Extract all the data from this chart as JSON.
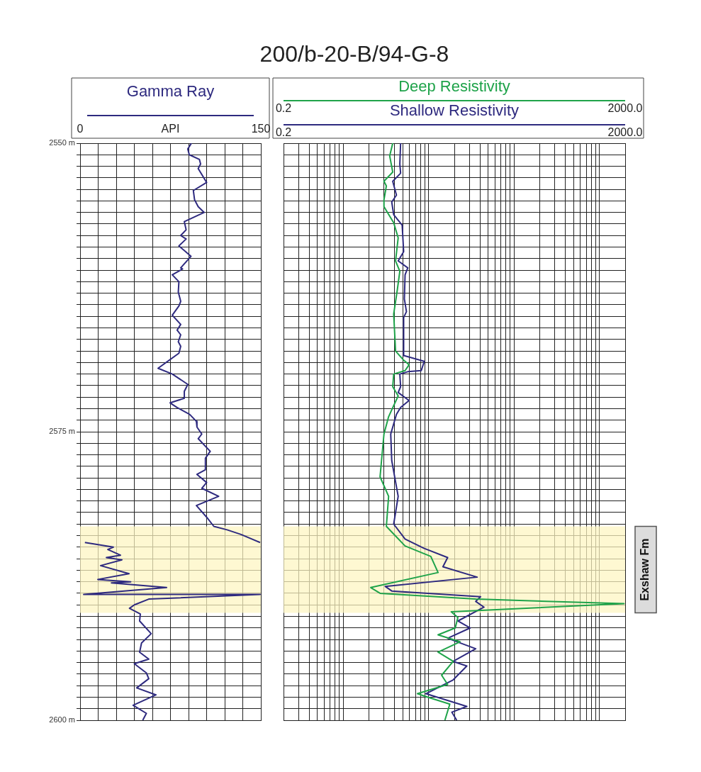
{
  "chart_data": [
    {
      "type": "line",
      "xlabel": "API",
      "legend": "top",
      "grid": true,
      "xlim": [
        0,
        150
      ],
      "ylim": [
        2600,
        2550
      ],
      "xticks": [
        {
          "value": 0,
          "label": "0"
        },
        {
          "value": 15,
          "label": null
        },
        {
          "value": 30,
          "label": null
        },
        {
          "value": 45,
          "label": null
        },
        {
          "value": 60,
          "label": null
        },
        {
          "value": 75,
          "label": null
        },
        {
          "value": 90,
          "label": null
        },
        {
          "value": 105,
          "label": null
        },
        {
          "value": 120,
          "label": null
        },
        {
          "value": 135,
          "label": null
        },
        {
          "value": 150,
          "label": "150"
        }
      ],
      "yticks": [
        {
          "value": 2550,
          "label": "2550 m"
        },
        {
          "value": 2551,
          "label": null
        },
        {
          "value": 2552,
          "label": null
        },
        {
          "value": 2553,
          "label": null
        },
        {
          "value": 2554,
          "label": null
        },
        {
          "value": 2555,
          "label": null
        },
        {
          "value": 2556,
          "label": null
        },
        {
          "value": 2557,
          "label": null
        },
        {
          "value": 2558,
          "label": null
        },
        {
          "value": 2559,
          "label": null
        },
        {
          "value": 2560,
          "label": null
        },
        {
          "value": 2561,
          "label": null
        },
        {
          "value": 2562,
          "label": null
        },
        {
          "value": 2563,
          "label": null
        },
        {
          "value": 2564,
          "label": null
        },
        {
          "value": 2565,
          "label": null
        },
        {
          "value": 2566,
          "label": null
        },
        {
          "value": 2567,
          "label": null
        },
        {
          "value": 2568,
          "label": null
        },
        {
          "value": 2569,
          "label": null
        },
        {
          "value": 2570,
          "label": null
        },
        {
          "value": 2571,
          "label": null
        },
        {
          "value": 2572,
          "label": null
        },
        {
          "value": 2573,
          "label": null
        },
        {
          "value": 2574,
          "label": null
        },
        {
          "value": 2575,
          "label": "2575 m"
        },
        {
          "value": 2576,
          "label": null
        },
        {
          "value": 2577,
          "label": null
        },
        {
          "value": 2578,
          "label": null
        },
        {
          "value": 2579,
          "label": null
        },
        {
          "value": 2580,
          "label": null
        },
        {
          "value": 2581,
          "label": null
        },
        {
          "value": 2582,
          "label": null
        },
        {
          "value": 2583,
          "label": null
        },
        {
          "value": 2584,
          "label": null
        },
        {
          "value": 2585,
          "label": null
        },
        {
          "value": 2586,
          "label": null
        },
        {
          "value": 2587,
          "label": null
        },
        {
          "value": 2588,
          "label": null
        },
        {
          "value": 2589,
          "label": null
        },
        {
          "value": 2590,
          "label": null
        },
        {
          "value": 2591,
          "label": null
        },
        {
          "value": 2592,
          "label": null
        },
        {
          "value": 2593,
          "label": null
        },
        {
          "value": 2594,
          "label": null
        },
        {
          "value": 2595,
          "label": null
        },
        {
          "value": 2596,
          "label": null
        },
        {
          "value": 2597,
          "label": null
        },
        {
          "value": 2598,
          "label": null
        },
        {
          "value": 2599,
          "label": null
        },
        {
          "value": 2600,
          "label": "2600 m"
        }
      ],
      "bands": [
        {
          "axis": "y",
          "from": 2583.2,
          "to": 2590.7,
          "color": "#fdf5c0"
        }
      ],
      "series": [
        {
          "name": "Gamma Ray",
          "color": "#2e2a7f",
          "x": [
            92.4,
            89.4,
            90.6,
            99,
            100,
            98,
            105,
            94,
            95,
            98,
            103,
            86.5,
            88,
            83.5,
            88,
            82,
            92,
            83.5,
            85,
            76.5,
            82,
            81.5,
            83.5,
            82,
            76.5,
            83.5,
            80.5,
            83.5,
            81.5,
            83.5,
            82,
            64.7,
            76.5,
            89.4,
            86.5,
            86.5,
            74.7,
            80.5,
            91,
            96.5,
            97,
            101,
            98,
            108,
            104,
            104,
            97,
            105,
            101,
            115,
            96.5,
            105,
            111,
            122,
            133.5,
            149.4,
            null,
            4,
            27.6,
            23,
            33.5,
            21.8,
            34.7,
            17,
            40.6,
            14.7,
            42,
            26,
            71.8,
            3,
            149.4,
            57,
            45,
            41,
            50,
            49.4,
            59,
            51,
            49.4,
            57,
            45,
            55,
            57,
            47,
            63,
            44,
            55,
            52
          ],
          "values": [
            2550,
            2550.5,
            2551,
            2551.4,
            2551.8,
            2552.2,
            2553.4,
            2554.1,
            2554.9,
            2555.5,
            2556,
            2556.8,
            2557.5,
            2558,
            2558.3,
            2558.9,
            2559.8,
            2560.8,
            2560.9,
            2561.4,
            2562,
            2562.9,
            2563.7,
            2564.1,
            2564.9,
            2565.7,
            2566.2,
            2566.6,
            2567.2,
            2567.6,
            2568.2,
            2569.5,
            2570,
            2570.9,
            2571.5,
            2572.1,
            2572.5,
            2572.9,
            2573.5,
            2574.1,
            2574.6,
            2575.2,
            2575.6,
            2576.7,
            2577.3,
            2578.3,
            2578.7,
            2579.4,
            2579.9,
            2580.6,
            2581.4,
            2582.4,
            2583.2,
            2583.5,
            2583.9,
            2584.6,
            null,
            2584.6,
            2585,
            2585.2,
            2585.7,
            2585.9,
            2586.1,
            2586.6,
            2587.3,
            2587.8,
            2588,
            2588.1,
            2588.5,
            2589.1,
            2589.1,
            2589.5,
            2590,
            2590.3,
            2590.8,
            2591.4,
            2592.5,
            2593.3,
            2594.1,
            2594.7,
            2595.1,
            2595.9,
            2596.4,
            2597.2,
            2597.8,
            2598.7,
            2599.4,
            2600
          ]
        }
      ]
    },
    {
      "type": "line",
      "title": "200/b-20-B/94-G-8",
      "legend": "top",
      "grid": true,
      "log": "x",
      "tick_labels": "x",
      "xlim": [
        0.2,
        2000
      ],
      "ylim": [
        2600,
        2550
      ],
      "xticks": [
        {
          "value": 0.2,
          "label": "0.2"
        },
        {
          "value": 0.3,
          "label": null
        },
        {
          "value": 0.4,
          "label": null
        },
        {
          "value": 0.5,
          "label": null
        },
        {
          "value": 0.6,
          "label": null
        },
        {
          "value": 0.7,
          "label": null
        },
        {
          "value": 0.8,
          "label": null
        },
        {
          "value": 0.9,
          "label": null
        },
        {
          "value": 1,
          "label": null
        },
        {
          "value": 2,
          "label": null
        },
        {
          "value": 3,
          "label": null
        },
        {
          "value": 4,
          "label": null
        },
        {
          "value": 5,
          "label": null
        },
        {
          "value": 6,
          "label": null
        },
        {
          "value": 7,
          "label": null
        },
        {
          "value": 8,
          "label": null
        },
        {
          "value": 9,
          "label": null
        },
        {
          "value": 10,
          "label": null
        },
        {
          "value": 20,
          "label": null
        },
        {
          "value": 30,
          "label": null
        },
        {
          "value": 40,
          "label": null
        },
        {
          "value": 50,
          "label": null
        },
        {
          "value": 60,
          "label": null
        },
        {
          "value": 70,
          "label": null
        },
        {
          "value": 80,
          "label": null
        },
        {
          "value": 90,
          "label": null
        },
        {
          "value": 100,
          "label": null
        },
        {
          "value": 200,
          "label": null
        },
        {
          "value": 300,
          "label": null
        },
        {
          "value": 400,
          "label": null
        },
        {
          "value": 500,
          "label": null
        },
        {
          "value": 600,
          "label": null
        },
        {
          "value": 700,
          "label": null
        },
        {
          "value": 800,
          "label": null
        },
        {
          "value": 900,
          "label": null
        },
        {
          "value": 1000,
          "label": null
        },
        {
          "value": 2000,
          "label": "2000.0"
        }
      ],
      "yticks": [
        {
          "value": 2550,
          "label": null
        },
        {
          "value": 2551,
          "label": null
        },
        {
          "value": 2552,
          "label": null
        },
        {
          "value": 2553,
          "label": null
        },
        {
          "value": 2554,
          "label": null
        },
        {
          "value": 2555,
          "label": null
        },
        {
          "value": 2556,
          "label": null
        },
        {
          "value": 2557,
          "label": null
        },
        {
          "value": 2558,
          "label": null
        },
        {
          "value": 2559,
          "label": null
        },
        {
          "value": 2560,
          "label": null
        },
        {
          "value": 2561,
          "label": null
        },
        {
          "value": 2562,
          "label": null
        },
        {
          "value": 2563,
          "label": null
        },
        {
          "value": 2564,
          "label": null
        },
        {
          "value": 2565,
          "label": null
        },
        {
          "value": 2566,
          "label": null
        },
        {
          "value": 2567,
          "label": null
        },
        {
          "value": 2568,
          "label": null
        },
        {
          "value": 2569,
          "label": null
        },
        {
          "value": 2570,
          "label": null
        },
        {
          "value": 2571,
          "label": null
        },
        {
          "value": 2572,
          "label": null
        },
        {
          "value": 2573,
          "label": null
        },
        {
          "value": 2574,
          "label": null
        },
        {
          "value": 2575,
          "label": null
        },
        {
          "value": 2576,
          "label": null
        },
        {
          "value": 2577,
          "label": null
        },
        {
          "value": 2578,
          "label": null
        },
        {
          "value": 2579,
          "label": null
        },
        {
          "value": 2580,
          "label": null
        },
        {
          "value": 2581,
          "label": null
        },
        {
          "value": 2582,
          "label": null
        },
        {
          "value": 2583,
          "label": null
        },
        {
          "value": 2584,
          "label": null
        },
        {
          "value": 2585,
          "label": null
        },
        {
          "value": 2586,
          "label": null
        },
        {
          "value": 2587,
          "label": null
        },
        {
          "value": 2588,
          "label": null
        },
        {
          "value": 2589,
          "label": null
        },
        {
          "value": 2590,
          "label": null
        },
        {
          "value": 2591,
          "label": null
        },
        {
          "value": 2592,
          "label": null
        },
        {
          "value": 2593,
          "label": null
        },
        {
          "value": 2594,
          "label": null
        },
        {
          "value": 2595,
          "label": null
        },
        {
          "value": 2596,
          "label": null
        },
        {
          "value": 2597,
          "label": null
        },
        {
          "value": 2598,
          "label": null
        },
        {
          "value": 2599,
          "label": null
        },
        {
          "value": 2600,
          "label": null
        }
      ],
      "bands": [
        {
          "axis": "y",
          "from": 2583.2,
          "to": 2590.7,
          "label": "Exshaw Fm",
          "color": "#fdf5c0"
        }
      ],
      "series": [
        {
          "name": "Deep Resistivity",
          "color": "#1fa34a",
          "x": [
            3.8,
            3.5,
            3.8,
            3.0,
            3.2,
            3.0,
            3.0,
            3.9,
            4.4,
            4.1,
            4.6,
            4.3,
            3.9,
            4.1,
            5.1,
            5.9,
            5.3,
            3.9,
            3.8,
            4.4,
            3.7,
            3.4,
            3.0,
            2.7,
            3.4,
            3.2,
            5.3,
            10.6,
            12.9,
            2.1,
            2.7,
            35.6,
            1940,
            18.4,
            22,
            20.5,
            12.9,
            23.3,
            12.9,
            19.4,
            14.2,
            16.7,
            7.4,
            9.8,
            17.7,
            15.5
          ],
          "values": [
            2550,
            2551.1,
            2552.5,
            2553.3,
            2553.7,
            2554.9,
            2555.5,
            2556.9,
            2558.2,
            2560.2,
            2561.1,
            2562.7,
            2564.8,
            2568,
            2568.8,
            2569.2,
            2569.7,
            2570,
            2571.1,
            2571.9,
            2573.1,
            2573.7,
            2575.2,
            2578.9,
            2580.6,
            2583.2,
            2584.9,
            2585.8,
            2587.2,
            2588.5,
            2589,
            2589.5,
            2589.9,
            2590.6,
            2591.1,
            2592,
            2592.6,
            2593.2,
            2594.1,
            2594.9,
            2596.1,
            2596.9,
            2597.7,
            2598,
            2598.6,
            2600
          ]
        },
        {
          "name": "Shallow Resistivity",
          "color": "#2e2a7f",
          "x": [
            4.7,
            4.6,
            4.7,
            3.8,
            4.2,
            3.7,
            3.9,
            4.9,
            5.1,
            4.4,
            5.7,
            5.3,
            5.2,
            5.5,
            5.1,
            5.1,
            8.9,
            8.2,
            5.7,
            4.6,
            4.7,
            4.4,
            5.9,
            4.7,
            4.2,
            3.6,
            3.7,
            4.4,
            3.9,
            5.3,
            8.8,
            16.7,
            14.7,
            37,
            3.1,
            3.7,
            40.6,
            35.6,
            44.5,
            22,
            30.7,
            16.7,
            35.6,
            19.4,
            28,
            19.4,
            9.3,
            28,
            18.7,
            21.3
          ],
          "values": [
            2550,
            2551.8,
            2552.6,
            2553.3,
            2554.5,
            2555.1,
            2556.2,
            2557.1,
            2559.4,
            2560.2,
            2560.8,
            2561.4,
            2563.5,
            2564.6,
            2565.1,
            2568.4,
            2568.9,
            2569.7,
            2569.8,
            2570,
            2571.1,
            2571.6,
            2572.3,
            2572.9,
            2573.5,
            2575.2,
            2577.5,
            2580.6,
            2583,
            2584.3,
            2585.1,
            2585.9,
            2586.7,
            2587.6,
            2588.4,
            2588.8,
            2589.3,
            2589.7,
            2590.2,
            2591.4,
            2592,
            2592.9,
            2593.8,
            2594.9,
            2595.3,
            2596.5,
            2597.7,
            2598.8,
            2599.3,
            2600
          ]
        }
      ]
    }
  ]
}
